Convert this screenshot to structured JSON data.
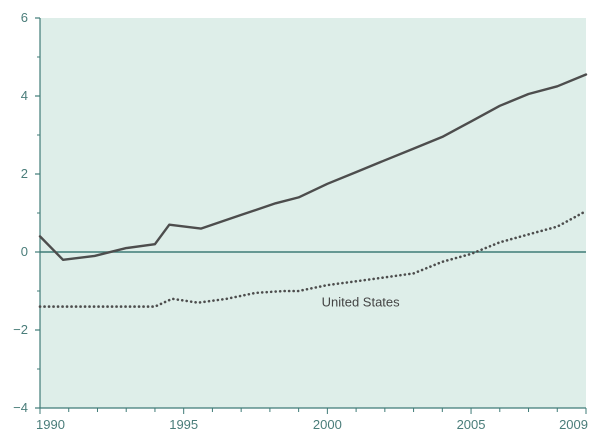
{
  "chart_data": {
    "type": "line",
    "xlim": [
      1990,
      2009
    ],
    "ylim": [
      -4,
      6
    ],
    "x_ticks": [
      1990,
      1995,
      2000,
      2005,
      2009
    ],
    "y_ticks": [
      -4,
      -2,
      0,
      2,
      4,
      6
    ],
    "x_tick_labels": [
      "1990",
      "1995",
      "2000",
      "2005",
      "2009"
    ],
    "y_tick_labels": [
      "−4",
      "−2",
      "0",
      "2",
      "4",
      "6"
    ],
    "grid": false,
    "reference_line_y": 0,
    "series": [
      {
        "style": "solid",
        "color": "#4d4d4d",
        "x": [
          1990,
          1990.8,
          1991.9,
          1993,
          1994,
          1994.5,
          1995.6,
          1997,
          1998.2,
          1999,
          2000,
          2001,
          2002,
          2003,
          2004,
          2005,
          2006,
          2007,
          2008,
          2009
        ],
        "y": [
          0.4,
          -0.2,
          -0.1,
          0.1,
          0.2,
          0.7,
          0.6,
          0.95,
          1.25,
          1.4,
          1.75,
          2.05,
          2.35,
          2.65,
          2.95,
          3.35,
          3.75,
          4.05,
          4.25,
          4.55
        ]
      },
      {
        "name": "United States",
        "style": "dotted",
        "color": "#4d4d4d",
        "x": [
          1990,
          1991,
          1992,
          1993,
          1994,
          1994.6,
          1995.5,
          1996.5,
          1997.5,
          1998.5,
          1999,
          2000,
          2001,
          2002,
          2003,
          2004,
          2005,
          2006,
          2007,
          2008,
          2009
        ],
        "y": [
          -1.4,
          -1.4,
          -1.4,
          -1.4,
          -1.4,
          -1.2,
          -1.3,
          -1.2,
          -1.05,
          -1.0,
          -1.0,
          -0.85,
          -0.75,
          -0.65,
          -0.55,
          -0.25,
          -0.05,
          0.25,
          0.45,
          0.65,
          1.05
        ]
      }
    ],
    "colors": {
      "background": "#deeee9",
      "axis": "#3f7b77",
      "zero_line": "#3f7b77"
    }
  }
}
